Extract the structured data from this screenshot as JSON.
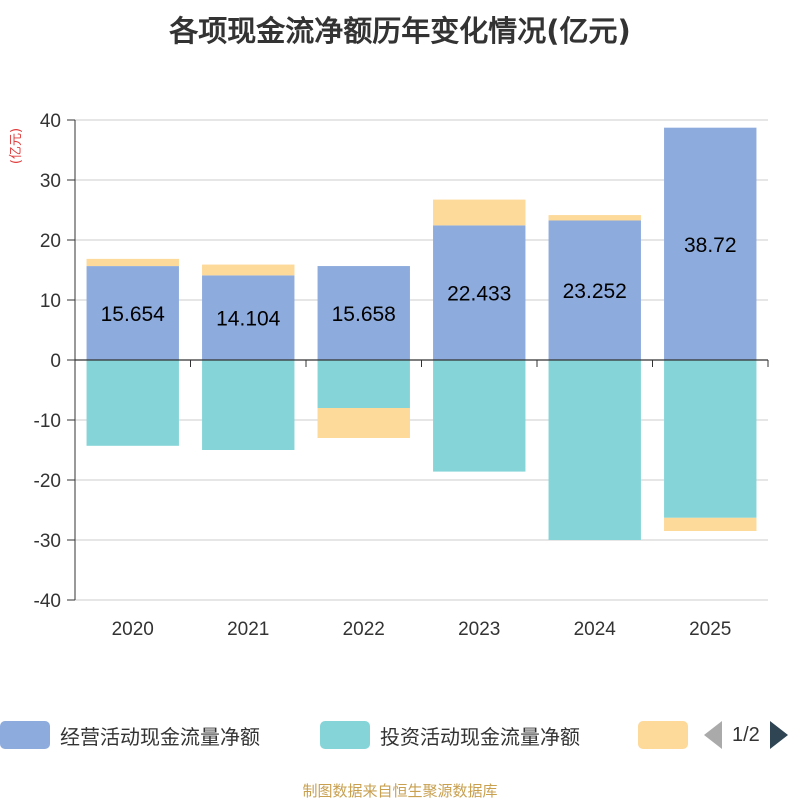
{
  "title": "各项现金流净额历年变化情况(亿元)",
  "unit_label": "(亿元)",
  "source": "制图数据来自恒生聚源数据库",
  "pager": {
    "text": "1/2"
  },
  "colors": {
    "operating": "#8dabdc",
    "investing": "#85d5d8",
    "financing": "#fdd99a",
    "unit": "#e23b3b",
    "source": "#c8a050"
  },
  "chart_data": {
    "type": "bar",
    "stacked": true,
    "categories": [
      "2020",
      "2021",
      "2022",
      "2023",
      "2024",
      "2025"
    ],
    "ylim": [
      -40,
      40
    ],
    "yticks": [
      -40,
      -30,
      -20,
      -10,
      0,
      10,
      20,
      30,
      40
    ],
    "grid": true,
    "legend_position": "bottom",
    "series": [
      {
        "name": "经营活动现金流量净额",
        "key": "operating",
        "values": [
          15.654,
          14.104,
          15.658,
          22.433,
          23.252,
          38.72
        ],
        "labels": [
          "15.654",
          "14.104",
          "15.658",
          "22.433",
          "23.252",
          "38.72"
        ]
      },
      {
        "name": "投资活动现金流量净额",
        "key": "investing",
        "values": [
          -14.3,
          -15.0,
          -8.0,
          -18.6,
          -30.0,
          -26.3
        ]
      },
      {
        "name": "",
        "key": "financing",
        "values": [
          1.2,
          1.8,
          -5.0,
          4.3,
          0.9,
          -2.2
        ]
      }
    ]
  }
}
